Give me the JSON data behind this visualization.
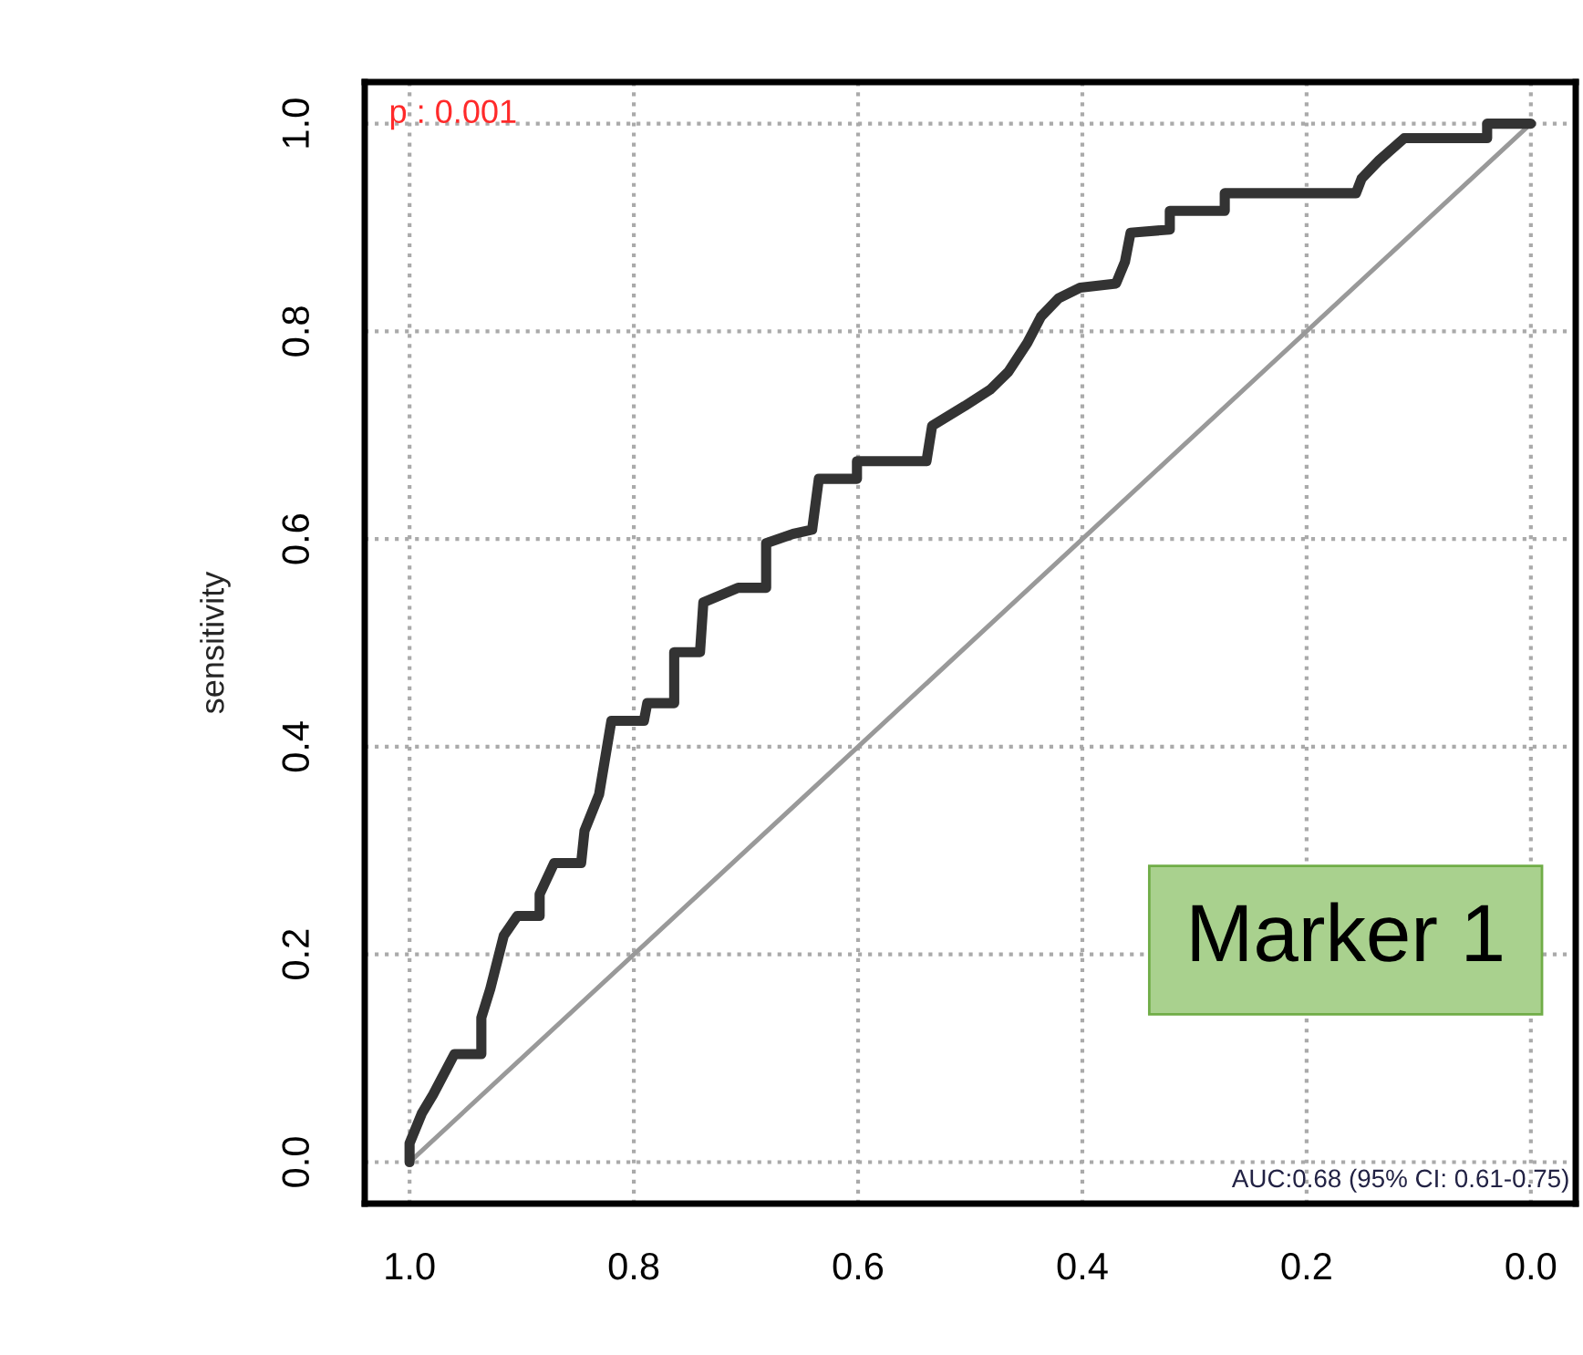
{
  "chart_data": {
    "type": "line",
    "ylabel": "sensitivity",
    "xlim": [
      1.04,
      -0.04
    ],
    "ylim": [
      -0.04,
      1.04
    ],
    "xticks": [
      {
        "value": 1.0,
        "label": "1.0"
      },
      0.8,
      0.6,
      0.4,
      0.2,
      {
        "value": 0.0,
        "label": "0.0"
      }
    ],
    "yticks": [
      {
        "value": 0.0,
        "label": "0.0"
      },
      0.2,
      0.4,
      0.6,
      0.8,
      {
        "value": 1.0,
        "label": "1.0"
      }
    ],
    "grid": true,
    "legend": false,
    "line_style": "solid",
    "marker": "none",
    "annotations": [
      "p : 0.001",
      "AUC:0.68 (95% CI: 0.61-0.75)",
      "Marker 1"
    ],
    "series": [
      {
        "color": "#333333",
        "x": [
          1.0,
          1.0,
          0.989,
          0.979,
          0.96,
          0.936,
          0.936,
          0.928,
          0.916,
          0.904,
          0.884,
          0.884,
          0.871,
          0.847,
          0.844,
          0.831,
          0.82,
          0.791,
          0.788,
          0.764,
          0.764,
          0.741,
          0.738,
          0.707,
          0.682,
          0.682,
          0.658,
          0.641,
          0.635,
          0.601,
          0.601,
          0.539,
          0.534,
          0.505,
          0.482,
          0.466,
          0.449,
          0.437,
          0.421,
          0.402,
          0.37,
          0.362,
          0.357,
          0.322,
          0.322,
          0.273,
          0.273,
          0.156,
          0.151,
          0.135,
          0.113,
          0.039,
          0.039,
          0.0
        ],
        "values": [
          0.0,
          0.018,
          0.047,
          0.065,
          0.104,
          0.104,
          0.139,
          0.167,
          0.218,
          0.237,
          0.237,
          0.258,
          0.288,
          0.288,
          0.319,
          0.354,
          0.425,
          0.425,
          0.442,
          0.442,
          0.491,
          0.491,
          0.539,
          0.553,
          0.553,
          0.596,
          0.605,
          0.609,
          0.658,
          0.658,
          0.675,
          0.675,
          0.709,
          0.728,
          0.744,
          0.761,
          0.789,
          0.814,
          0.832,
          0.842,
          0.846,
          0.867,
          0.895,
          0.898,
          0.916,
          0.916,
          0.933,
          0.933,
          0.947,
          0.965,
          0.986,
          0.986,
          1.0,
          1.0
        ]
      },
      {
        "color": "#999999",
        "x": [
          1.0,
          0.0
        ],
        "values": [
          0.0,
          1.0
        ]
      }
    ]
  }
}
